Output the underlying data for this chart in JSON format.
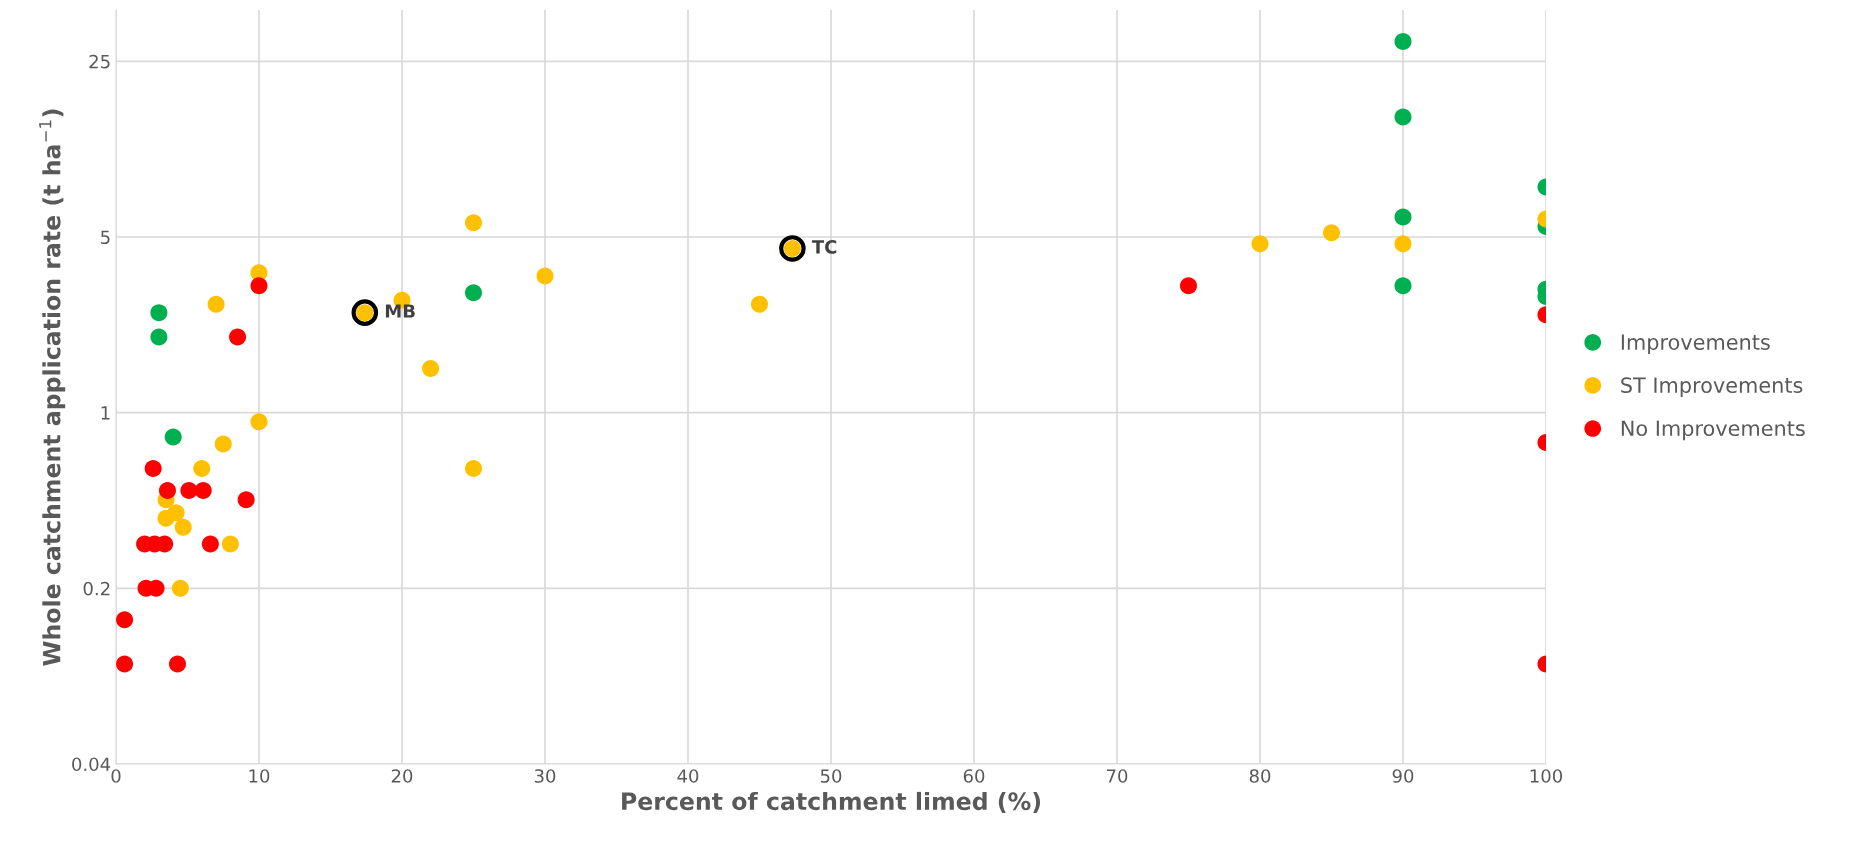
{
  "chart_data": {
    "type": "scatter",
    "xlabel": "Percent of catchment limed (%)",
    "ylabel": "Whole catchment application rate (t ha$^{−1}$)",
    "log": "y",
    "xlim": [
      0,
      100
    ],
    "xticks": [
      0,
      10,
      20,
      30,
      40,
      50,
      60,
      70,
      80,
      90,
      100
    ],
    "ylim": [
      0.04,
      40
    ],
    "yticks": [
      0.04,
      0.2,
      1,
      5,
      25
    ],
    "grid": true,
    "legend": "right",
    "marker": "circle",
    "series": [
      {
        "name": "Improvements",
        "color": "#00b050",
        "x": [
          90,
          90,
          100,
          90,
          100,
          90,
          100,
          100,
          25,
          3,
          3,
          4
        ],
        "values": [
          30,
          15,
          7.9,
          6.0,
          5.5,
          3.2,
          3.1,
          2.9,
          3.0,
          2.5,
          2.0,
          0.8
        ]
      },
      {
        "name": "ST Improvements",
        "color": "#ffc000",
        "x": [
          25,
          100,
          85,
          80,
          90,
          47.3,
          10,
          30,
          20,
          7,
          45,
          17.4,
          22,
          10,
          7.5,
          6,
          25,
          3.5,
          4.2,
          3.5,
          4.7,
          8,
          4.5
        ],
        "values": [
          5.7,
          5.9,
          5.2,
          4.7,
          4.7,
          4.5,
          3.6,
          3.5,
          2.8,
          2.7,
          2.7,
          2.5,
          1.5,
          0.92,
          0.75,
          0.6,
          0.6,
          0.45,
          0.4,
          0.38,
          0.35,
          0.3,
          0.2
        ]
      },
      {
        "name": "No Improvements",
        "color": "#ff0000",
        "x": [
          10,
          75,
          8.5,
          100,
          100,
          100,
          2.6,
          3.6,
          5.1,
          6.1,
          9.1,
          2.0,
          2.7,
          3.4,
          6.6,
          2.1,
          2.8,
          0.6,
          0.6,
          4.3
        ],
        "values": [
          3.2,
          3.2,
          2.0,
          2.45,
          0.76,
          0.1,
          0.6,
          0.49,
          0.49,
          0.49,
          0.45,
          0.3,
          0.3,
          0.3,
          0.3,
          0.2,
          0.2,
          0.15,
          0.1,
          0.1
        ]
      }
    ],
    "annotations": [
      {
        "text": "MB",
        "x": 17.4,
        "y": 2.5
      },
      {
        "text": "TC",
        "x": 47.3,
        "y": 4.5
      }
    ]
  }
}
